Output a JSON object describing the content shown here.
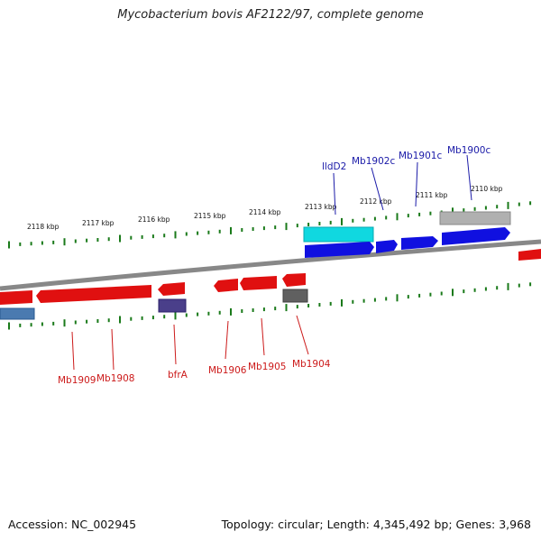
{
  "title": "Mycobacterium bovis AF2122/97, complete genome",
  "accession_text": "Accession: NC_002945",
  "summary_text": "Topology: circular; Length: 4,345,492 bp; Genes: 3,968",
  "scale_labels_top": [
    "2118 kbp",
    "2117 kbp",
    "2116 kbp",
    "2115 kbp",
    "2114 kbp",
    "2113 kbp",
    "2112 kbp",
    "2111 kbp",
    "2110 kbp"
  ],
  "forward_gene_labels": [
    "lldD2",
    "Mb1902c",
    "Mb1901c",
    "Mb1900c"
  ],
  "reverse_gene_labels": [
    "Mb1909",
    "Mb1908",
    "bfrA",
    "Mb1906",
    "Mb1905",
    "Mb1904"
  ],
  "colors": {
    "gene": "#e01010",
    "gene_forward": "#1010e0",
    "cyan_feature": "#10d8e0",
    "gray_feature": "#a8a8a8",
    "dark_gray_feature": "#555555",
    "steel_feature": "#4a7ab0",
    "purple_feature": "#4a3f8a",
    "backbone": "#808080",
    "ticks": "#1a7a1a",
    "label_blue": "#1a1aa8",
    "label_red": "#cc1a1a"
  }
}
